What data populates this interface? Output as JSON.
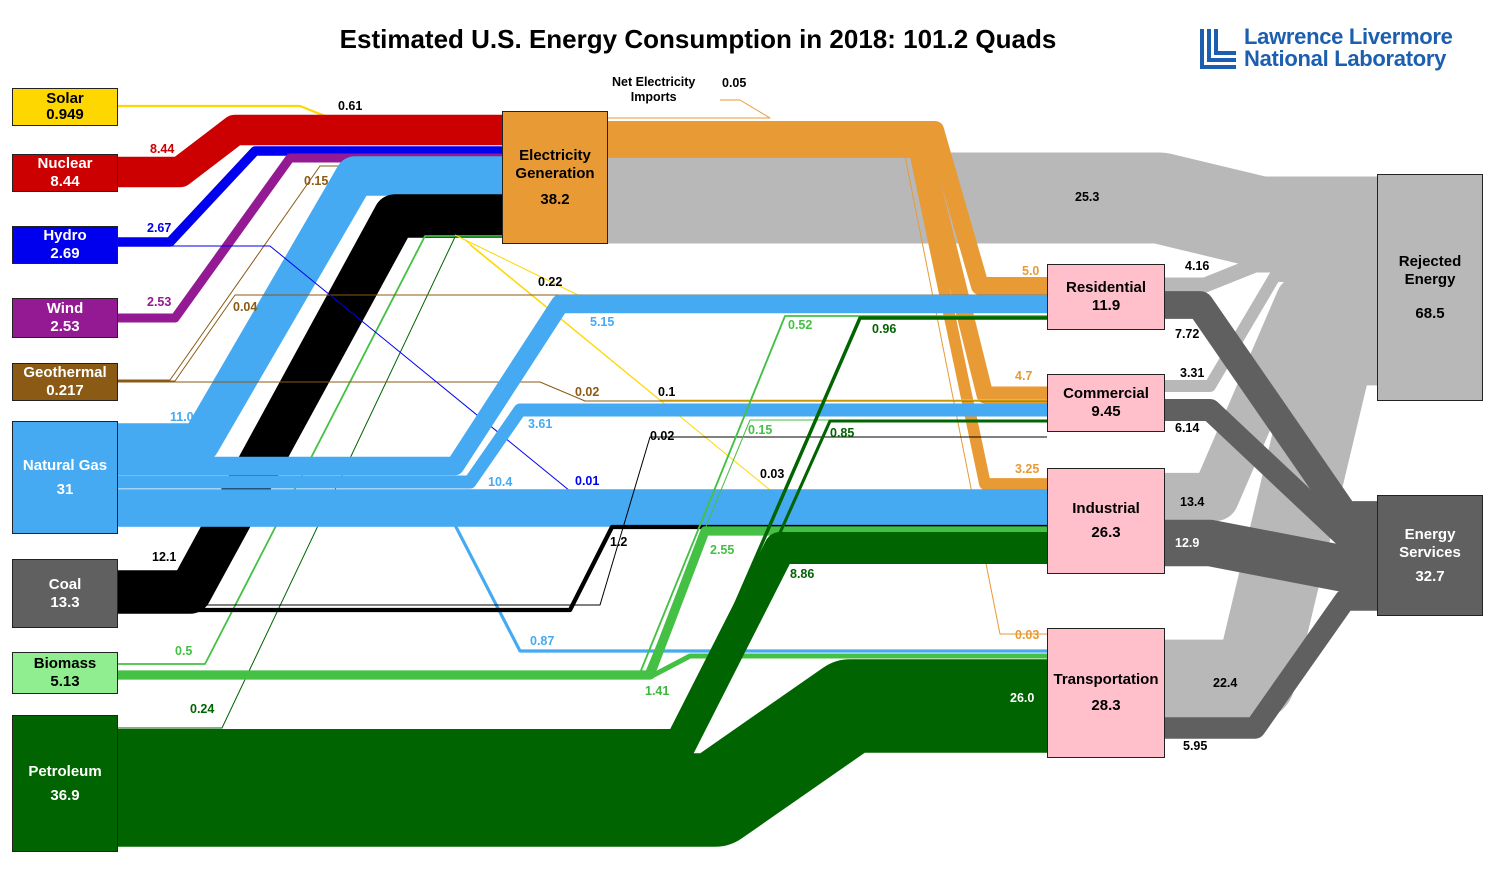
{
  "title": "Estimated U.S. Energy Consumption in 2018: 101.2 Quads",
  "logo": {
    "line1": "Lawrence Livermore",
    "line2": "National Laboratory",
    "color": "#1c5fb0"
  },
  "net_imports_label": {
    "line1": "Net Electricity",
    "line2": "Imports"
  },
  "colors": {
    "solar": "#ffd700",
    "nuclear": "#cc0000",
    "hydro": "#0000ee",
    "wind": "#931a93",
    "geothermal": "#8b5a14",
    "natural_gas": "#45aaf2",
    "coal": "#000000",
    "biomass": "#44c044",
    "petroleum": "#006400",
    "electricity": "#e89a35",
    "rejected": "#b8b8b8",
    "services": "#606060",
    "sector": "#ffc0cb"
  },
  "nodes": {
    "solar": {
      "label": "Solar",
      "value": "0.949"
    },
    "nuclear": {
      "label": "Nuclear",
      "value": "8.44"
    },
    "hydro": {
      "label": "Hydro",
      "value": "2.69"
    },
    "wind": {
      "label": "Wind",
      "value": "2.53"
    },
    "geothermal": {
      "label": "Geothermal",
      "value": "0.217"
    },
    "natural_gas": {
      "label": "Natural Gas",
      "value": "31"
    },
    "coal": {
      "label": "Coal",
      "value": "13.3"
    },
    "biomass": {
      "label": "Biomass",
      "value": "5.13"
    },
    "petroleum": {
      "label": "Petroleum",
      "value": "36.9"
    },
    "electricity": {
      "label": "Electricity Generation",
      "value": "38.2"
    },
    "residential": {
      "label": "Residential",
      "value": "11.9"
    },
    "commercial": {
      "label": "Commercial",
      "value": "9.45"
    },
    "industrial": {
      "label": "Industrial",
      "value": "26.3"
    },
    "transportation": {
      "label": "Transportation",
      "value": "28.3"
    },
    "rejected": {
      "label": "Rejected Energy",
      "value": "68.5"
    },
    "services": {
      "label": "Energy Services",
      "value": "32.7"
    }
  },
  "flows": [
    {
      "source": "electricity",
      "target": "rejected",
      "value": 25.3,
      "label": "25.3"
    },
    {
      "source": "residential",
      "target": "rejected",
      "value": 4.16,
      "label": "4.16"
    },
    {
      "source": "commercial",
      "target": "rejected",
      "value": 3.31,
      "label": "3.31"
    },
    {
      "source": "industrial",
      "target": "rejected",
      "value": 13.4,
      "label": "13.4"
    },
    {
      "source": "transportation",
      "target": "rejected",
      "value": 22.4,
      "label": "22.4"
    },
    {
      "source": "residential",
      "target": "services",
      "value": 7.72,
      "label": "7.72"
    },
    {
      "source": "commercial",
      "target": "services",
      "value": 6.14,
      "label": "6.14"
    },
    {
      "source": "industrial",
      "target": "services",
      "value": 12.9,
      "label": "12.9"
    },
    {
      "source": "transportation",
      "target": "services",
      "value": 5.95,
      "label": "5.95"
    },
    {
      "source": "solar",
      "target": "electricity",
      "value": 0.61,
      "label": "0.61"
    },
    {
      "source": "nuclear",
      "target": "electricity",
      "value": 8.44,
      "label": "8.44"
    },
    {
      "source": "hydro",
      "target": "electricity",
      "value": 2.67,
      "label": "2.67"
    },
    {
      "source": "wind",
      "target": "electricity",
      "value": 2.53,
      "label": "2.53"
    },
    {
      "source": "geothermal",
      "target": "electricity",
      "value": 0.15,
      "label": "0.15"
    },
    {
      "source": "natural_gas",
      "target": "electricity",
      "value": 11.0,
      "label": "11.0"
    },
    {
      "source": "coal",
      "target": "electricity",
      "value": 12.1,
      "label": "12.1"
    },
    {
      "source": "biomass",
      "target": "electricity",
      "value": 0.5,
      "label": "0.5"
    },
    {
      "source": "petroleum",
      "target": "electricity",
      "value": 0.24,
      "label": "0.24"
    },
    {
      "source": "net_imports",
      "target": "electricity",
      "value": 0.05,
      "label": "0.05"
    },
    {
      "source": "electricity",
      "target": "residential",
      "value": 5.0,
      "label": "5.0"
    },
    {
      "source": "electricity",
      "target": "commercial",
      "value": 4.7,
      "label": "4.7"
    },
    {
      "source": "electricity",
      "target": "industrial",
      "value": 3.25,
      "label": "3.25"
    },
    {
      "source": "electricity",
      "target": "transportation",
      "value": 0.03,
      "label": "0.03"
    },
    {
      "source": "solar",
      "target": "residential",
      "value": 0.22,
      "label": "0.22"
    },
    {
      "source": "solar",
      "target": "commercial",
      "value": 0.1,
      "label": "0.1"
    },
    {
      "source": "solar",
      "target": "industrial",
      "value": 0.03,
      "label": "0.03"
    },
    {
      "source": "geothermal",
      "target": "residential",
      "value": 0.04,
      "label": "0.04"
    },
    {
      "source": "geothermal",
      "target": "commercial",
      "value": 0.02,
      "label": "0.02"
    },
    {
      "source": "hydro",
      "target": "industrial",
      "value": 0.01,
      "label": "0.01"
    },
    {
      "source": "natural_gas",
      "target": "residential",
      "value": 5.15,
      "label": "5.15"
    },
    {
      "source": "natural_gas",
      "target": "commercial",
      "value": 3.61,
      "label": "3.61"
    },
    {
      "source": "natural_gas",
      "target": "industrial",
      "value": 10.4,
      "label": "10.4"
    },
    {
      "source": "natural_gas",
      "target": "transportation",
      "value": 0.87,
      "label": "0.87"
    },
    {
      "source": "coal",
      "target": "commercial",
      "value": 0.02,
      "label": "0.02"
    },
    {
      "source": "coal",
      "target": "industrial",
      "value": 1.2,
      "label": "1.2"
    },
    {
      "source": "biomass",
      "target": "residential",
      "value": 0.52,
      "label": "0.52"
    },
    {
      "source": "biomass",
      "target": "commercial",
      "value": 0.15,
      "label": "0.15"
    },
    {
      "source": "biomass",
      "target": "industrial",
      "value": 2.55,
      "label": "2.55"
    },
    {
      "source": "biomass",
      "target": "transportation",
      "value": 1.41,
      "label": "1.41"
    },
    {
      "source": "petroleum",
      "target": "residential",
      "value": 0.96,
      "label": "0.96"
    },
    {
      "source": "petroleum",
      "target": "commercial",
      "value": 0.85,
      "label": "0.85"
    },
    {
      "source": "petroleum",
      "target": "industrial",
      "value": 8.86,
      "label": "8.86"
    },
    {
      "source": "petroleum",
      "target": "transportation",
      "value": 26.0,
      "label": "26.0"
    }
  ]
}
